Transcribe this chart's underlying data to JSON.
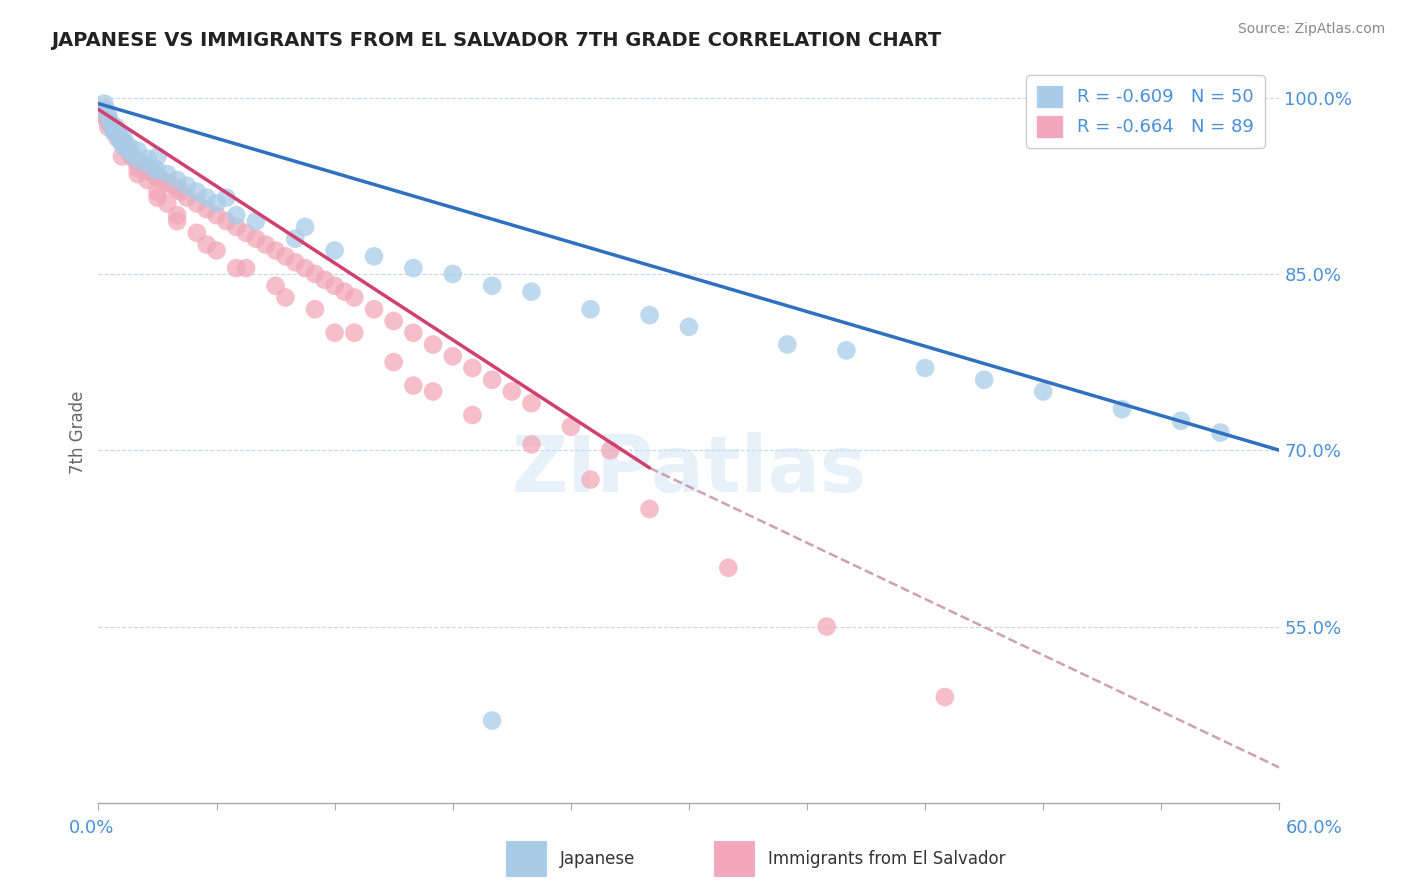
{
  "title": "JAPANESE VS IMMIGRANTS FROM EL SALVADOR 7TH GRADE CORRELATION CHART",
  "source_text": "Source: ZipAtlas.com",
  "ylabel": "7th Grade",
  "xlim": [
    0.0,
    60.0
  ],
  "ylim": [
    40.0,
    103.0
  ],
  "ytick_positions": [
    55.0,
    70.0,
    85.0,
    100.0
  ],
  "ytick_labels": [
    "55.0%",
    "70.0%",
    "85.0%",
    "100.0%"
  ],
  "legend_blue_label": "R = -0.609   N = 50",
  "legend_pink_label": "R = -0.664   N = 89",
  "watermark": "ZIPatlas",
  "blue_color": "#a8cce8",
  "pink_color": "#f2a8b8",
  "blue_edge_color": "#80aad0",
  "pink_edge_color": "#e080a0",
  "blue_line_color": "#3070c0",
  "pink_line_color": "#d04070",
  "dashed_line_color": "#d0a0b0",
  "legend_color": "#4a90d9",
  "blue_line_x0": 0.0,
  "blue_line_y0": 99.5,
  "blue_line_x1": 60.0,
  "blue_line_y1": 70.0,
  "pink_line_x0": 0.0,
  "pink_line_y0": 99.0,
  "pink_line_x1": 28.0,
  "pink_line_y1": 68.5,
  "dash_line_x0": 28.0,
  "dash_line_y0": 68.5,
  "dash_line_x1": 60.0,
  "dash_line_y1": 43.0,
  "blue_points_x": [
    0.3,
    0.4,
    0.5,
    0.6,
    0.7,
    0.8,
    0.9,
    1.0,
    1.1,
    1.2,
    1.3,
    1.4,
    1.5,
    1.6,
    1.8,
    2.0,
    2.2,
    2.5,
    2.8,
    3.0,
    3.5,
    4.0,
    4.5,
    5.0,
    5.5,
    6.0,
    7.0,
    8.0,
    10.0,
    12.0,
    14.0,
    16.0,
    18.0,
    20.0,
    22.0,
    25.0,
    28.0,
    30.0,
    35.0,
    38.0,
    42.0,
    45.0,
    48.0,
    52.0,
    55.0,
    57.0,
    3.0,
    6.5,
    10.5,
    20.0
  ],
  "blue_points_y": [
    99.5,
    99.0,
    98.5,
    98.0,
    97.5,
    97.0,
    97.5,
    97.0,
    96.5,
    96.0,
    96.5,
    96.0,
    95.5,
    95.8,
    95.0,
    95.5,
    94.5,
    94.8,
    94.0,
    95.0,
    93.5,
    93.0,
    92.5,
    92.0,
    91.5,
    91.0,
    90.0,
    89.5,
    88.0,
    87.0,
    86.5,
    85.5,
    85.0,
    84.0,
    83.5,
    82.0,
    81.5,
    80.5,
    79.0,
    78.5,
    77.0,
    76.0,
    75.0,
    73.5,
    72.5,
    71.5,
    93.8,
    91.5,
    89.0,
    47.0
  ],
  "pink_points_x": [
    0.2,
    0.3,
    0.4,
    0.5,
    0.6,
    0.7,
    0.8,
    0.9,
    1.0,
    1.1,
    1.2,
    1.3,
    1.4,
    1.5,
    1.6,
    1.7,
    1.8,
    2.0,
    2.2,
    2.4,
    2.6,
    2.8,
    3.0,
    3.2,
    3.5,
    3.8,
    4.0,
    4.2,
    4.5,
    5.0,
    5.5,
    6.0,
    6.5,
    7.0,
    7.5,
    8.0,
    8.5,
    9.0,
    9.5,
    10.0,
    10.5,
    11.0,
    11.5,
    12.0,
    12.5,
    13.0,
    14.0,
    15.0,
    16.0,
    17.0,
    18.0,
    19.0,
    20.0,
    21.0,
    22.0,
    24.0,
    26.0,
    0.5,
    1.0,
    1.5,
    2.0,
    2.5,
    3.0,
    3.5,
    4.0,
    5.0,
    6.0,
    7.5,
    9.0,
    11.0,
    13.0,
    15.0,
    17.0,
    19.0,
    22.0,
    25.0,
    28.0,
    32.0,
    37.0,
    43.0,
    1.2,
    2.0,
    3.0,
    4.0,
    5.5,
    7.0,
    9.5,
    12.0,
    16.0
  ],
  "pink_points_y": [
    99.0,
    98.5,
    98.2,
    98.0,
    97.8,
    97.5,
    97.2,
    97.0,
    96.8,
    96.5,
    96.3,
    96.0,
    95.8,
    95.5,
    95.2,
    95.0,
    94.8,
    94.5,
    94.2,
    94.0,
    93.8,
    93.5,
    93.2,
    93.0,
    92.8,
    92.5,
    92.2,
    92.0,
    91.5,
    91.0,
    90.5,
    90.0,
    89.5,
    89.0,
    88.5,
    88.0,
    87.5,
    87.0,
    86.5,
    86.0,
    85.5,
    85.0,
    84.5,
    84.0,
    83.5,
    83.0,
    82.0,
    81.0,
    80.0,
    79.0,
    78.0,
    77.0,
    76.0,
    75.0,
    74.0,
    72.0,
    70.0,
    97.5,
    96.5,
    95.5,
    94.0,
    93.0,
    92.0,
    91.0,
    90.0,
    88.5,
    87.0,
    85.5,
    84.0,
    82.0,
    80.0,
    77.5,
    75.0,
    73.0,
    70.5,
    67.5,
    65.0,
    60.0,
    55.0,
    49.0,
    95.0,
    93.5,
    91.5,
    89.5,
    87.5,
    85.5,
    83.0,
    80.0,
    75.5
  ]
}
